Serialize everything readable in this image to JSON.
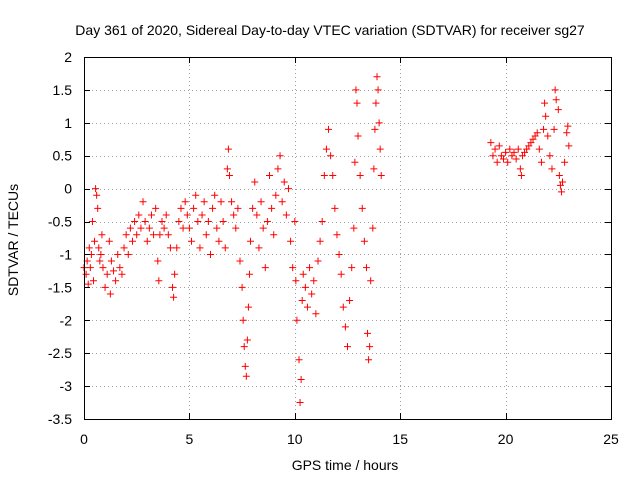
{
  "chart_data": {
    "type": "scatter",
    "title": "Day 361 of 2020, Sidereal Day-to-day VTEC variation (SDTVAR) for receiver sg27",
    "xlabel": "GPS time / hours",
    "ylabel": "SDTVAR / TECUs",
    "xlim": [
      0,
      25
    ],
    "ylim": [
      -3.5,
      2
    ],
    "xticks": [
      0,
      5,
      10,
      15,
      20,
      25
    ],
    "xtick_labels": [
      "0",
      "5",
      "10",
      "15",
      "20",
      "25"
    ],
    "yticks": [
      -3.5,
      -3,
      -2.5,
      -2,
      -1.5,
      -1,
      -0.5,
      0,
      0.5,
      1,
      1.5,
      2
    ],
    "ytick_labels": [
      "-3.5",
      "-3",
      "-2.5",
      "-2",
      "-1.5",
      "-1",
      "-0.5",
      "0",
      "0.5",
      "1",
      "1.5",
      "2"
    ],
    "grid": true,
    "marker": "+",
    "series": [
      {
        "name": "SDTVAR",
        "color": "#ff0000",
        "points": [
          [
            0.0,
            -1.2
          ],
          [
            0.1,
            -1.3
          ],
          [
            0.15,
            -1.1
          ],
          [
            0.2,
            -1.45
          ],
          [
            0.25,
            -0.9
          ],
          [
            0.3,
            -1.2
          ],
          [
            0.35,
            -1.0
          ],
          [
            0.4,
            -0.5
          ],
          [
            0.45,
            -1.4
          ],
          [
            0.5,
            -0.8
          ],
          [
            0.55,
            -0.0
          ],
          [
            0.6,
            -0.1
          ],
          [
            0.65,
            -0.3
          ],
          [
            0.7,
            -0.9
          ],
          [
            0.75,
            -1.1
          ],
          [
            0.8,
            -1.0
          ],
          [
            0.85,
            -0.7
          ],
          [
            0.9,
            -1.2
          ],
          [
            1.0,
            -1.5
          ],
          [
            1.1,
            -1.3
          ],
          [
            1.2,
            -0.8
          ],
          [
            1.25,
            -1.6
          ],
          [
            1.3,
            -1.1
          ],
          [
            1.4,
            -1.25
          ],
          [
            1.5,
            -1.4
          ],
          [
            1.6,
            -1.0
          ],
          [
            1.7,
            -1.2
          ],
          [
            1.8,
            -1.3
          ],
          [
            1.9,
            -0.9
          ],
          [
            2.0,
            -0.7
          ],
          [
            2.1,
            -1.0
          ],
          [
            2.2,
            -0.6
          ],
          [
            2.3,
            -0.8
          ],
          [
            2.4,
            -0.5
          ],
          [
            2.5,
            -0.7
          ],
          [
            2.6,
            -0.4
          ],
          [
            2.7,
            -0.6
          ],
          [
            2.8,
            -0.2
          ],
          [
            2.9,
            -0.5
          ],
          [
            3.0,
            -0.8
          ],
          [
            3.1,
            -0.6
          ],
          [
            3.2,
            -0.4
          ],
          [
            3.3,
            -0.7
          ],
          [
            3.4,
            -0.3
          ],
          [
            3.5,
            -1.1
          ],
          [
            3.55,
            -1.4
          ],
          [
            3.6,
            -0.7
          ],
          [
            3.7,
            -0.5
          ],
          [
            3.8,
            -0.6
          ],
          [
            3.9,
            -0.4
          ],
          [
            4.0,
            -0.7
          ],
          [
            4.1,
            -0.9
          ],
          [
            4.2,
            -1.5
          ],
          [
            4.25,
            -1.65
          ],
          [
            4.3,
            -1.3
          ],
          [
            4.4,
            -0.9
          ],
          [
            4.5,
            -0.5
          ],
          [
            4.6,
            -0.3
          ],
          [
            4.7,
            -0.6
          ],
          [
            4.8,
            -0.2
          ],
          [
            4.9,
            -0.4
          ],
          [
            5.0,
            -0.6
          ],
          [
            5.1,
            -0.8
          ],
          [
            5.2,
            -0.3
          ],
          [
            5.3,
            -0.1
          ],
          [
            5.4,
            -0.5
          ],
          [
            5.5,
            -0.9
          ],
          [
            5.6,
            -0.4
          ],
          [
            5.7,
            -0.2
          ],
          [
            5.8,
            -0.7
          ],
          [
            5.9,
            -0.5
          ],
          [
            6.0,
            -1.0
          ],
          [
            6.1,
            -0.3
          ],
          [
            6.2,
            -0.1
          ],
          [
            6.3,
            -0.6
          ],
          [
            6.4,
            -0.8
          ],
          [
            6.5,
            -0.2
          ],
          [
            6.6,
            -0.5
          ],
          [
            6.7,
            -0.9
          ],
          [
            6.8,
            0.3
          ],
          [
            6.85,
            0.6
          ],
          [
            6.9,
            0.2
          ],
          [
            7.0,
            -0.2
          ],
          [
            7.1,
            -0.4
          ],
          [
            7.2,
            -0.6
          ],
          [
            7.3,
            -0.3
          ],
          [
            7.4,
            -1.1
          ],
          [
            7.5,
            -1.5
          ],
          [
            7.55,
            -2.0
          ],
          [
            7.6,
            -2.4
          ],
          [
            7.65,
            -2.7
          ],
          [
            7.7,
            -2.85
          ],
          [
            7.75,
            -2.3
          ],
          [
            7.8,
            -1.8
          ],
          [
            7.85,
            -1.3
          ],
          [
            7.9,
            -0.8
          ],
          [
            8.0,
            -0.3
          ],
          [
            8.1,
            0.1
          ],
          [
            8.2,
            -0.4
          ],
          [
            8.3,
            -0.9
          ],
          [
            8.4,
            -0.2
          ],
          [
            8.5,
            -0.6
          ],
          [
            8.6,
            -1.2
          ],
          [
            8.7,
            -0.5
          ],
          [
            8.8,
            0.2
          ],
          [
            8.9,
            -0.3
          ],
          [
            9.0,
            -0.7
          ],
          [
            9.1,
            -0.1
          ],
          [
            9.2,
            0.3
          ],
          [
            9.3,
            0.5
          ],
          [
            9.4,
            -0.2
          ],
          [
            9.5,
            0.1
          ],
          [
            9.6,
            -0.4
          ],
          [
            9.7,
            0.0
          ],
          [
            9.8,
            -0.8
          ],
          [
            9.9,
            -1.2
          ],
          [
            10.0,
            -0.5
          ],
          [
            10.05,
            -1.4
          ],
          [
            10.1,
            -2.0
          ],
          [
            10.2,
            -2.6
          ],
          [
            10.25,
            -3.25
          ],
          [
            10.3,
            -2.9
          ],
          [
            10.35,
            -1.7
          ],
          [
            10.4,
            -1.3
          ],
          [
            10.5,
            -1.5
          ],
          [
            10.6,
            -1.8
          ],
          [
            10.7,
            -1.2
          ],
          [
            10.8,
            -1.6
          ],
          [
            10.9,
            -1.4
          ],
          [
            11.0,
            -1.9
          ],
          [
            11.1,
            -1.1
          ],
          [
            11.2,
            -0.8
          ],
          [
            11.3,
            -0.5
          ],
          [
            11.4,
            0.2
          ],
          [
            11.5,
            0.6
          ],
          [
            11.6,
            0.9
          ],
          [
            11.7,
            0.5
          ],
          [
            11.8,
            0.2
          ],
          [
            11.9,
            -0.3
          ],
          [
            12.0,
            -0.7
          ],
          [
            12.1,
            -1.0
          ],
          [
            12.2,
            -1.3
          ],
          [
            12.3,
            -1.8
          ],
          [
            12.4,
            -2.1
          ],
          [
            12.5,
            -2.4
          ],
          [
            12.6,
            -1.7
          ],
          [
            12.7,
            -1.2
          ],
          [
            12.8,
            -0.6
          ],
          [
            12.85,
            0.4
          ],
          [
            12.9,
            1.5
          ],
          [
            12.95,
            1.3
          ],
          [
            13.0,
            0.8
          ],
          [
            13.1,
            0.2
          ],
          [
            13.2,
            -0.3
          ],
          [
            13.3,
            -0.8
          ],
          [
            13.4,
            -1.2
          ],
          [
            13.45,
            -2.2
          ],
          [
            13.5,
            -2.6
          ],
          [
            13.55,
            -2.4
          ],
          [
            13.6,
            -1.4
          ],
          [
            13.7,
            -0.6
          ],
          [
            13.75,
            0.3
          ],
          [
            13.8,
            0.9
          ],
          [
            13.85,
            1.3
          ],
          [
            13.9,
            1.7
          ],
          [
            13.95,
            1.5
          ],
          [
            14.0,
            1.0
          ],
          [
            14.05,
            0.6
          ],
          [
            14.1,
            0.2
          ],
          [
            19.3,
            0.7
          ],
          [
            19.4,
            0.5
          ],
          [
            19.5,
            0.6
          ],
          [
            19.6,
            0.4
          ],
          [
            19.7,
            0.65
          ],
          [
            19.8,
            0.5
          ],
          [
            19.9,
            0.45
          ],
          [
            20.0,
            0.55
          ],
          [
            20.1,
            0.4
          ],
          [
            20.2,
            0.6
          ],
          [
            20.3,
            0.5
          ],
          [
            20.4,
            0.55
          ],
          [
            20.5,
            0.45
          ],
          [
            20.6,
            0.6
          ],
          [
            20.7,
            0.3
          ],
          [
            20.75,
            0.2
          ],
          [
            20.8,
            0.5
          ],
          [
            20.9,
            0.55
          ],
          [
            21.0,
            0.6
          ],
          [
            21.1,
            0.65
          ],
          [
            21.2,
            0.7
          ],
          [
            21.3,
            0.75
          ],
          [
            21.4,
            0.8
          ],
          [
            21.5,
            0.85
          ],
          [
            21.6,
            0.6
          ],
          [
            21.7,
            0.4
          ],
          [
            21.8,
            0.9
          ],
          [
            21.85,
            1.3
          ],
          [
            21.9,
            1.1
          ],
          [
            22.0,
            0.8
          ],
          [
            22.1,
            0.5
          ],
          [
            22.2,
            0.3
          ],
          [
            22.3,
            0.9
          ],
          [
            22.35,
            1.5
          ],
          [
            22.4,
            1.35
          ],
          [
            22.5,
            1.2
          ],
          [
            22.55,
            0.2
          ],
          [
            22.6,
            0.05
          ],
          [
            22.65,
            -0.05
          ],
          [
            22.7,
            0.1
          ],
          [
            22.8,
            0.4
          ],
          [
            22.9,
            0.85
          ],
          [
            22.95,
            0.95
          ],
          [
            23.0,
            0.65
          ]
        ]
      }
    ]
  }
}
